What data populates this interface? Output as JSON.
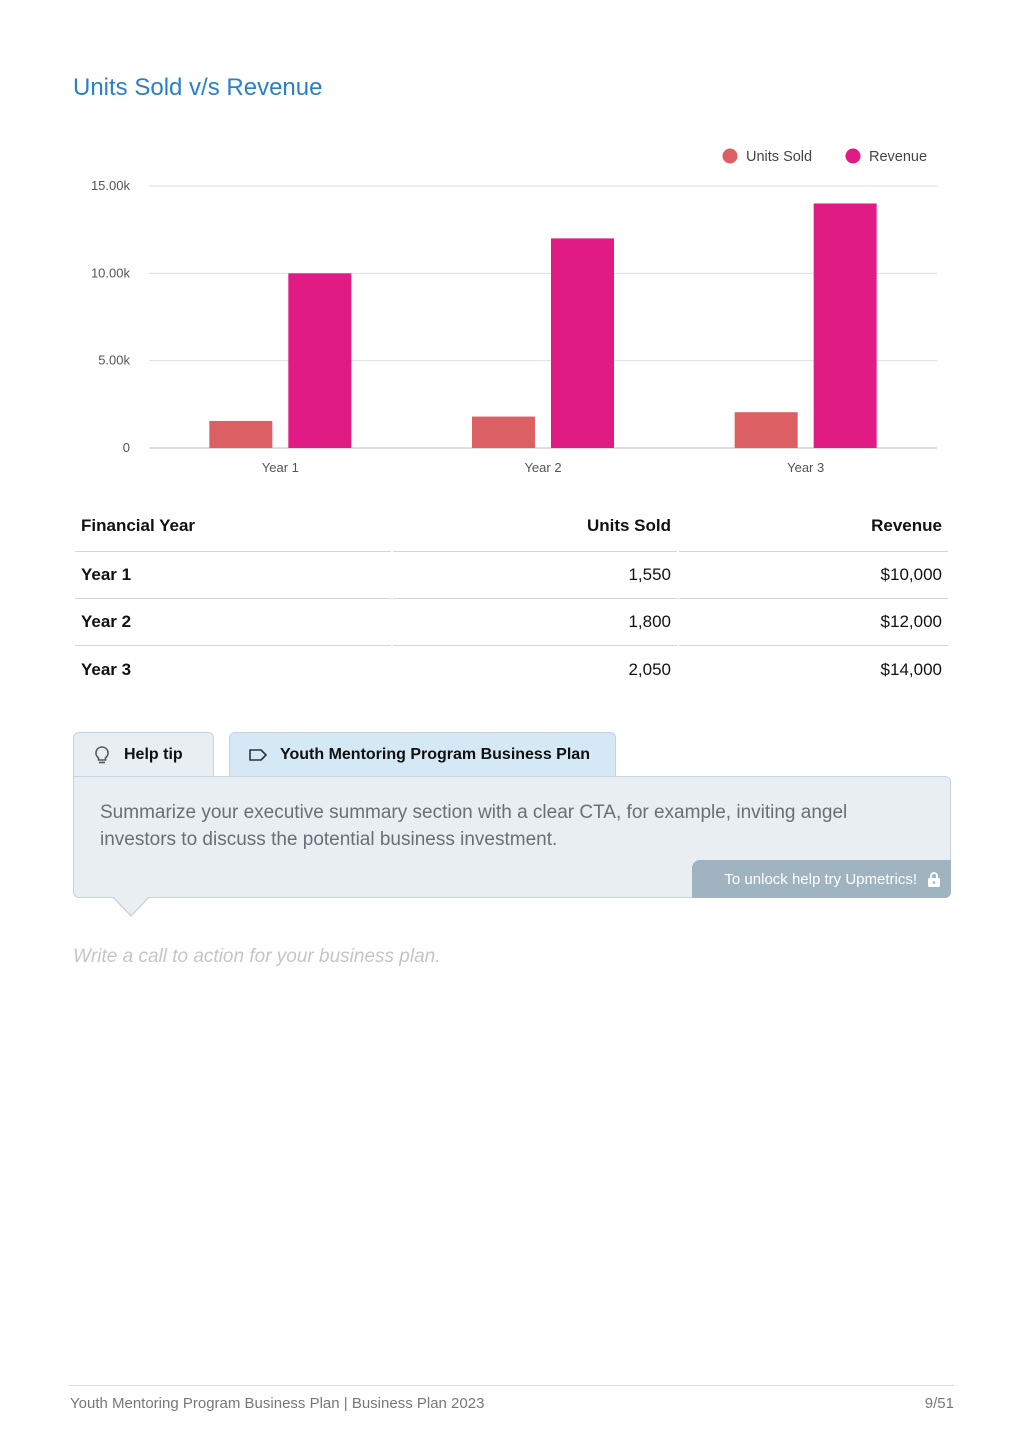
{
  "section_title": "Units Sold v/s Revenue",
  "chart_data": {
    "type": "bar",
    "categories": [
      "Year 1",
      "Year 2",
      "Year 3"
    ],
    "series": [
      {
        "name": "Units Sold",
        "color": "#dc5f63",
        "values": [
          1550,
          1800,
          2050
        ]
      },
      {
        "name": "Revenue",
        "color": "#e01b84",
        "values": [
          10000,
          12000,
          14000
        ]
      }
    ],
    "ylim": [
      0,
      15000
    ],
    "yticks": [
      0,
      5000,
      10000,
      15000
    ],
    "ytick_labels": [
      "0",
      "5.00k",
      "10.00k",
      "15.00k"
    ],
    "grid": true,
    "legend": "top-right"
  },
  "table": {
    "headers": [
      "Financial Year",
      "Units Sold",
      "Revenue"
    ],
    "rows": [
      [
        "Year 1",
        "1,550",
        "$10,000"
      ],
      [
        "Year 2",
        "1,800",
        "$12,000"
      ],
      [
        "Year 3",
        "2,050",
        "$14,000"
      ]
    ]
  },
  "tabs": {
    "help_label": "Help tip",
    "help_icon": "lightbulb-icon",
    "plan_label": "Youth Mentoring Program Business Plan",
    "plan_icon": "tag-icon"
  },
  "tip": {
    "text": "Summarize your executive summary section with a clear CTA, for example, inviting angel investors to discuss the potential business investment.",
    "unlock_label": "To unlock help try Upmetrics!",
    "unlock_icon": "lock-icon"
  },
  "placeholder": "Write a call to action for your business plan.",
  "footer": {
    "left": "Youth Mentoring Program Business Plan | Business Plan 2023",
    "right": "9/51"
  }
}
